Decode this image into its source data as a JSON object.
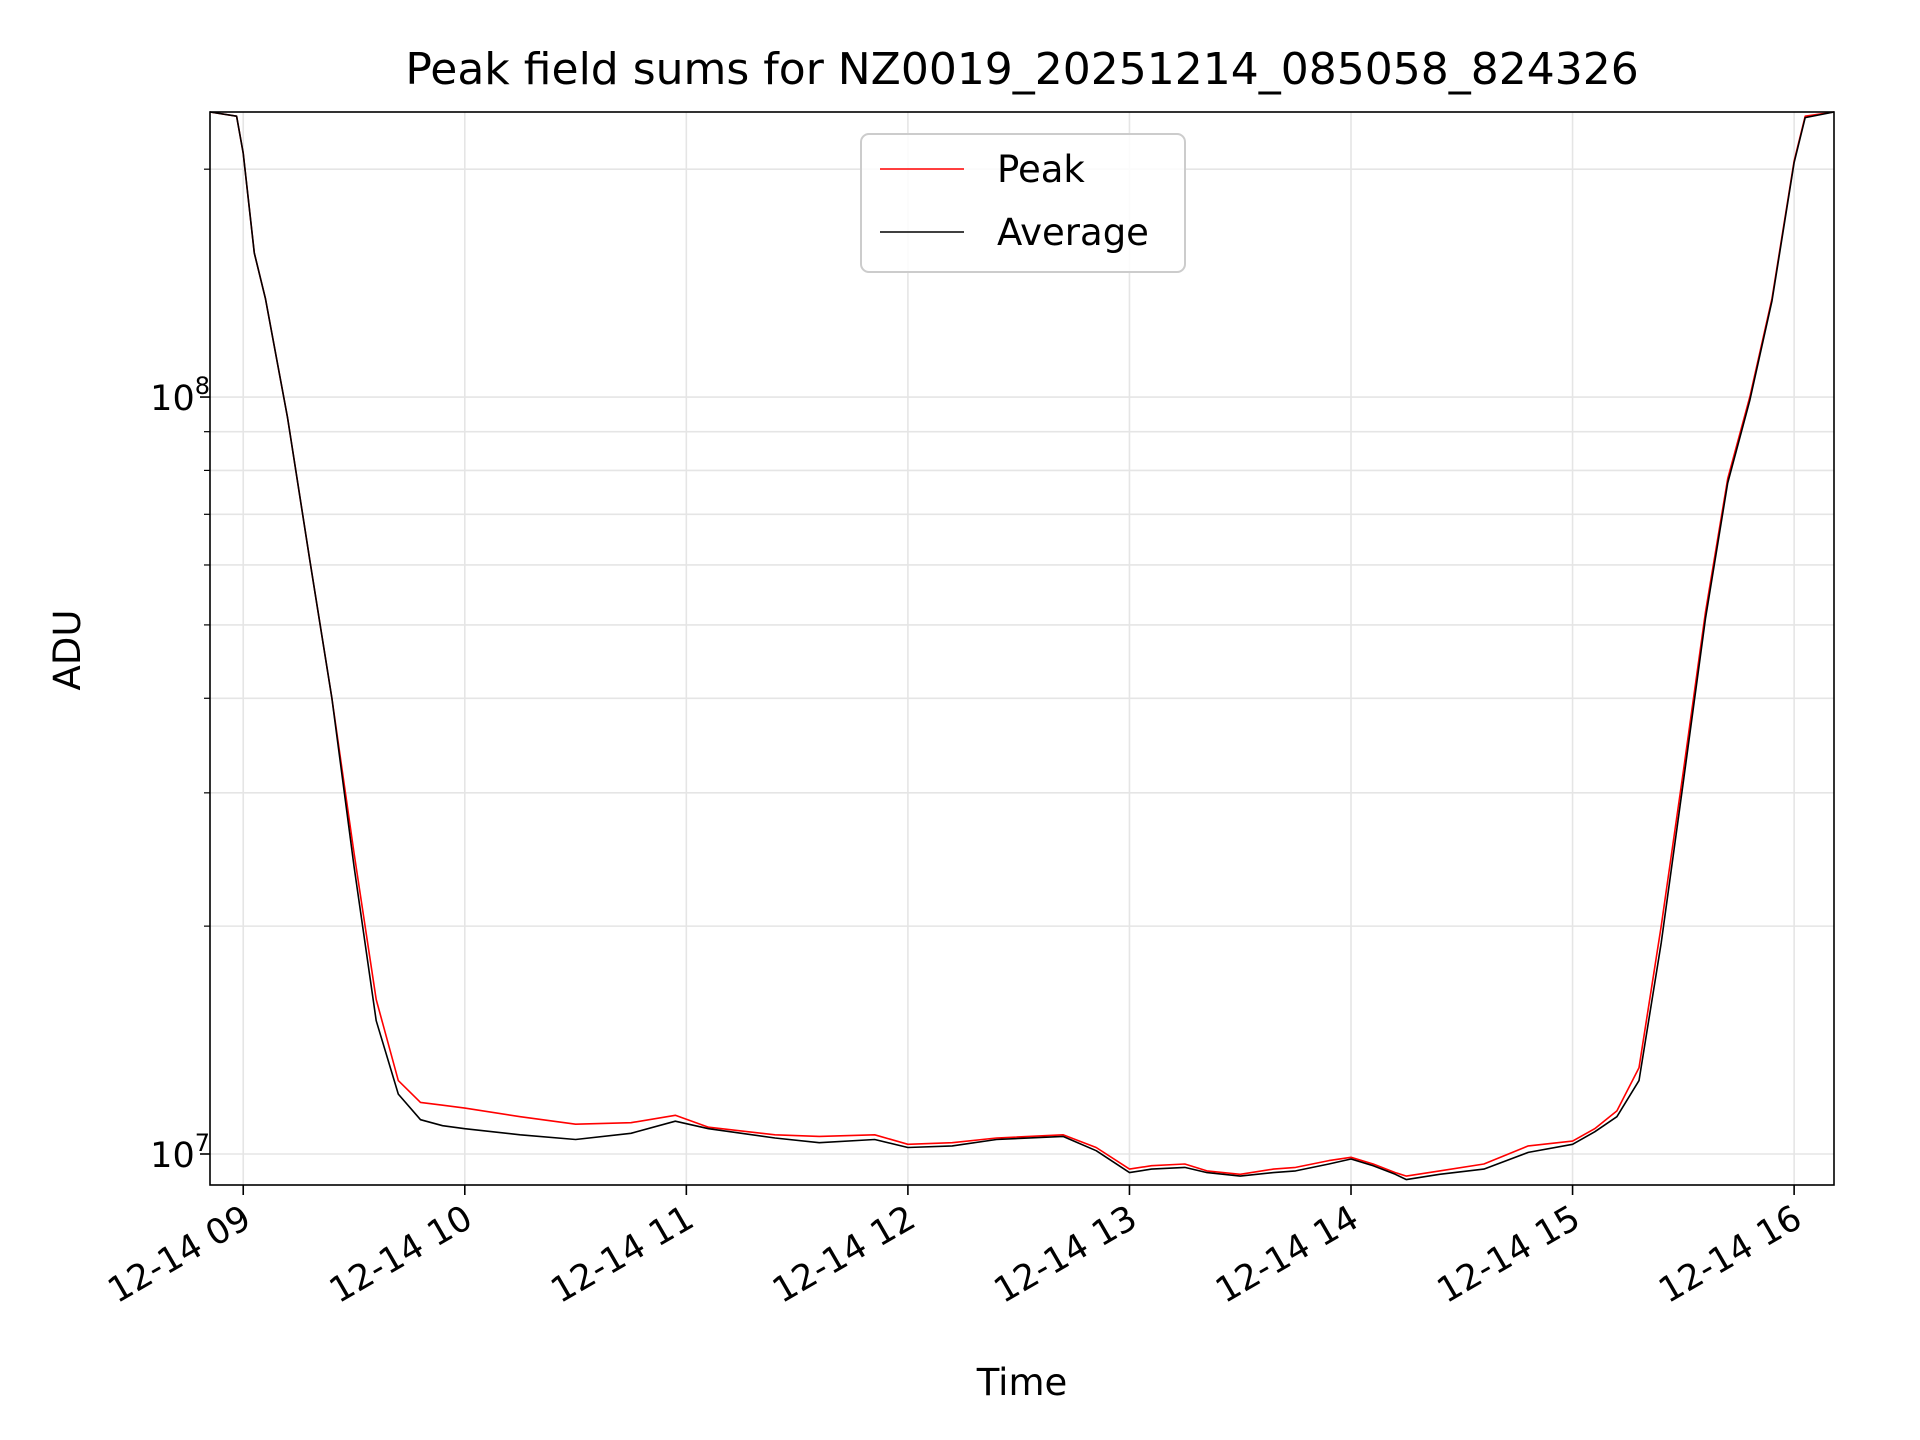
{
  "colors": {
    "background": "#ffffff",
    "grid": "#e5e5e5",
    "axes": "#000000",
    "peak": "#ff0000",
    "average": "#000000",
    "legend_border": "#cccccc"
  },
  "chart_data": {
    "type": "line",
    "title": "Peak field sums for NZ0019_20251214_085058_824326",
    "xlabel": "Time",
    "ylabel": "ADU",
    "yscale": "log",
    "grid": true,
    "legend_position": "upper-center",
    "x_unit": "hours since 12-14 00:00",
    "xlim": [
      8.85,
      16.18
    ],
    "ylim": [
      9100000,
      238000000
    ],
    "x_ticks": [
      {
        "value": 9,
        "label": "12-14 09"
      },
      {
        "value": 10,
        "label": "12-14 10"
      },
      {
        "value": 11,
        "label": "12-14 11"
      },
      {
        "value": 12,
        "label": "12-14 12"
      },
      {
        "value": 13,
        "label": "12-14 13"
      },
      {
        "value": 14,
        "label": "12-14 14"
      },
      {
        "value": 15,
        "label": "12-14 15"
      },
      {
        "value": 16,
        "label": "12-14 16"
      }
    ],
    "y_ticks_major": [
      {
        "value": 10000000,
        "base": "10",
        "exp": "7"
      },
      {
        "value": 100000000,
        "base": "10",
        "exp": "8"
      }
    ],
    "y_ticks_minor": [
      20000000,
      30000000,
      40000000,
      50000000,
      60000000,
      70000000,
      80000000,
      90000000,
      200000000
    ],
    "series": [
      {
        "name": "Peak",
        "color": "#ff0000",
        "x": [
          8.85,
          8.97,
          9.0,
          9.05,
          9.1,
          9.2,
          9.3,
          9.4,
          9.5,
          9.6,
          9.7,
          9.8,
          9.9,
          10.0,
          10.25,
          10.5,
          10.75,
          10.95,
          11.1,
          11.4,
          11.6,
          11.85,
          12.0,
          12.2,
          12.4,
          12.7,
          12.85,
          13.0,
          13.1,
          13.25,
          13.35,
          13.5,
          13.65,
          13.75,
          13.9,
          14.0,
          14.1,
          14.2,
          14.25,
          14.4,
          14.6,
          14.8,
          15.0,
          15.1,
          15.2,
          15.3,
          15.4,
          15.5,
          15.6,
          15.7,
          15.8,
          15.9,
          16.0,
          16.05,
          16.18
        ],
        "y": [
          238000000,
          235000000,
          210000000,
          155000000,
          135000000,
          94000000,
          61000000,
          40000000,
          25000000,
          16000000,
          12500000,
          11700000,
          11600000,
          11500000,
          11200000,
          10950000,
          11000000,
          11250000,
          10850000,
          10600000,
          10550000,
          10600000,
          10300000,
          10350000,
          10500000,
          10600000,
          10200000,
          9550000,
          9650000,
          9700000,
          9500000,
          9400000,
          9550000,
          9600000,
          9800000,
          9900000,
          9700000,
          9450000,
          9350000,
          9500000,
          9700000,
          10250000,
          10400000,
          10800000,
          11400000,
          13000000,
          20000000,
          32000000,
          52000000,
          78000000,
          100000000,
          135000000,
          205000000,
          235000000,
          238000000
        ]
      },
      {
        "name": "Average",
        "color": "#000000",
        "x": [
          8.85,
          8.97,
          9.0,
          9.05,
          9.1,
          9.2,
          9.3,
          9.4,
          9.5,
          9.6,
          9.7,
          9.8,
          9.9,
          10.0,
          10.25,
          10.5,
          10.75,
          10.95,
          11.1,
          11.4,
          11.6,
          11.85,
          12.0,
          12.2,
          12.4,
          12.7,
          12.85,
          13.0,
          13.1,
          13.25,
          13.35,
          13.5,
          13.65,
          13.75,
          13.9,
          14.0,
          14.1,
          14.2,
          14.25,
          14.4,
          14.6,
          14.8,
          15.0,
          15.1,
          15.2,
          15.3,
          15.4,
          15.5,
          15.6,
          15.7,
          15.8,
          15.9,
          16.0,
          16.05,
          16.18
        ],
        "y": [
          238000000,
          235000000,
          210000000,
          155000000,
          135000000,
          94000000,
          61000000,
          40000000,
          24000000,
          15000000,
          12000000,
          11100000,
          10900000,
          10800000,
          10600000,
          10450000,
          10650000,
          11050000,
          10800000,
          10500000,
          10350000,
          10450000,
          10200000,
          10250000,
          10450000,
          10550000,
          10100000,
          9450000,
          9550000,
          9600000,
          9450000,
          9350000,
          9450000,
          9500000,
          9700000,
          9850000,
          9650000,
          9400000,
          9250000,
          9400000,
          9550000,
          10050000,
          10300000,
          10700000,
          11200000,
          12500000,
          19000000,
          31000000,
          51000000,
          77000000,
          99000000,
          134000000,
          204000000,
          234000000,
          238000000
        ]
      }
    ]
  }
}
